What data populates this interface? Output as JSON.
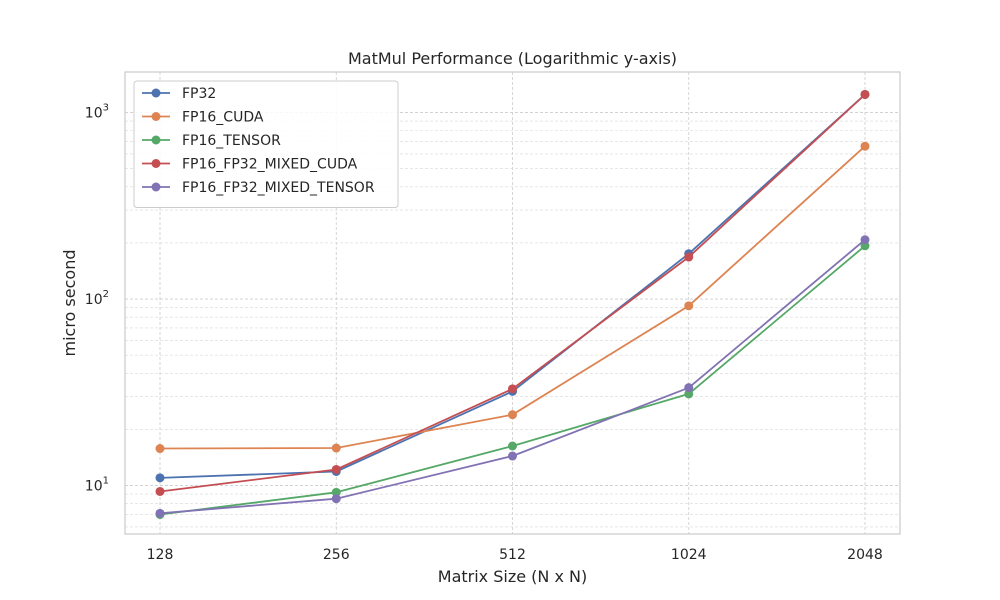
{
  "chart_data": {
    "type": "line",
    "title": "MatMul Performance (Logarithmic y-axis)",
    "xlabel": "Matrix Size (N x N)",
    "ylabel": "micro second",
    "x_scale": "categorical",
    "y_scale": "log",
    "ylim": [
      5.5,
      1650
    ],
    "grid": true,
    "grid_style": "dashed",
    "legend_position": "upper-left",
    "categories": [
      "128",
      "256",
      "512",
      "1024",
      "2048"
    ],
    "y_ticks": [
      {
        "value": 10,
        "base": "10",
        "exp": "1"
      },
      {
        "value": 100,
        "base": "10",
        "exp": "2"
      },
      {
        "value": 1000,
        "base": "10",
        "exp": "3"
      }
    ],
    "series": [
      {
        "name": "FP32",
        "color": "#4c72b0",
        "values": [
          11.0,
          11.9,
          32.0,
          175,
          1250
        ]
      },
      {
        "name": "FP16_CUDA",
        "color": "#dd8452",
        "values": [
          15.8,
          15.9,
          24.0,
          92,
          660
        ]
      },
      {
        "name": "FP16_TENSOR",
        "color": "#55a868",
        "values": [
          7.0,
          9.2,
          16.3,
          31.0,
          193
        ]
      },
      {
        "name": "FP16_FP32_MIXED_CUDA",
        "color": "#c44e52",
        "values": [
          9.3,
          12.2,
          33.0,
          168,
          1250
        ]
      },
      {
        "name": "FP16_FP32_MIXED_TENSOR",
        "color": "#8172b3",
        "values": [
          7.1,
          8.5,
          14.4,
          33.5,
          208
        ]
      }
    ]
  }
}
